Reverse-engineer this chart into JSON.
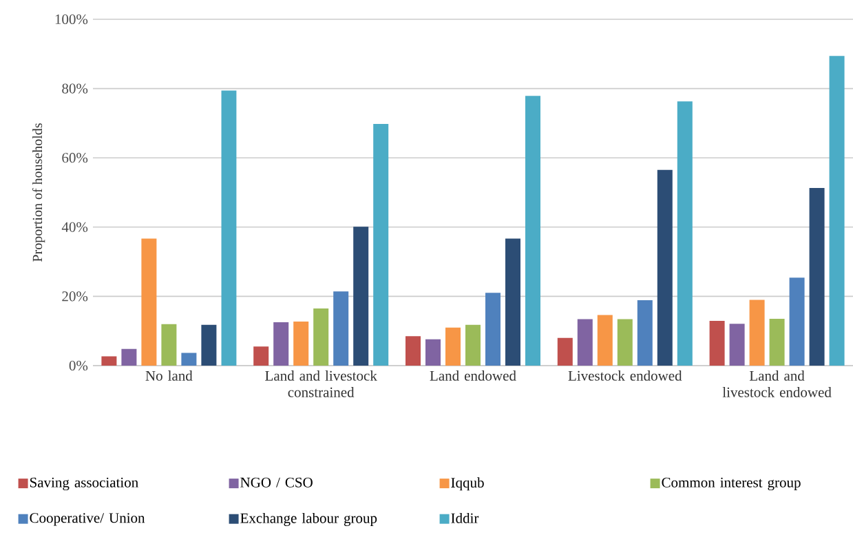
{
  "chart_data": {
    "type": "bar",
    "ylabel": "Proportion of households",
    "categories": [
      "No land",
      "Land and livestock constrained",
      "Land endowed",
      "Livestock endowed",
      "Land and livestock endowed"
    ],
    "series": [
      {
        "name": "Saving association",
        "color": "#c0504d",
        "values": [
          2.7,
          5.5,
          8.5,
          8.0,
          12.9
        ]
      },
      {
        "name": "NGO / CSO",
        "color": "#8064a2",
        "values": [
          4.8,
          12.5,
          7.6,
          13.4,
          12.1
        ]
      },
      {
        "name": "Iqqub",
        "color": "#f79646",
        "values": [
          36.7,
          12.7,
          11.0,
          14.6,
          19.0
        ]
      },
      {
        "name": "Common interest group",
        "color": "#9bbb59",
        "values": [
          12.0,
          16.5,
          11.8,
          13.4,
          13.5
        ]
      },
      {
        "name": "Cooperative/ Union",
        "color": "#4f81bd",
        "values": [
          3.7,
          21.4,
          21.0,
          18.9,
          25.4
        ]
      },
      {
        "name": "Exchange labour group",
        "color": "#2c4d75",
        "values": [
          11.8,
          40.1,
          36.7,
          56.5,
          51.3
        ]
      },
      {
        "name": "Iddir",
        "color": "#4bacc6",
        "values": [
          79.4,
          69.8,
          77.9,
          76.3,
          89.4
        ]
      }
    ],
    "ylim": [
      0,
      100
    ],
    "yticks": [
      {
        "value": 0,
        "label": "0%"
      },
      {
        "value": 20,
        "label": "20%"
      },
      {
        "value": 40,
        "label": "40%"
      },
      {
        "value": 60,
        "label": "60%"
      },
      {
        "value": 80,
        "label": "80%"
      },
      {
        "value": 100,
        "label": "100%"
      }
    ],
    "grid": "y",
    "legend": "bottom"
  }
}
